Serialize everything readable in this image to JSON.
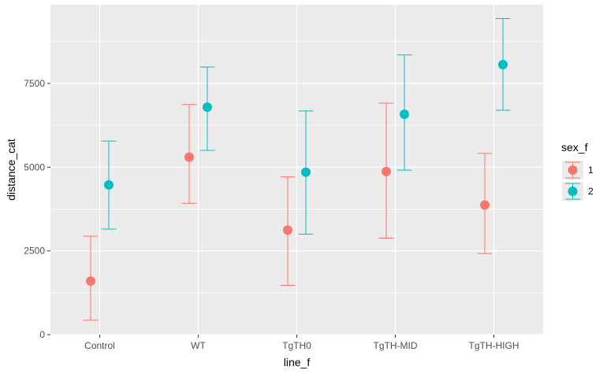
{
  "chart_data": {
    "type": "scatter",
    "xlabel": "line_f",
    "ylabel": "distance_cat",
    "categories": [
      "Control",
      "WT",
      "TgTH0",
      "TgTH-MID",
      "TgTH-HIGH"
    ],
    "ylim": [
      0,
      9850
    ],
    "yticks": [
      0,
      2500,
      5000,
      7500
    ],
    "ytick_labels": [
      "0",
      "2500",
      "5000",
      "7500"
    ],
    "grid": true,
    "legend": {
      "title": "sex_f",
      "placement": "right"
    },
    "series": [
      {
        "name": "1",
        "color": "#F8766D",
        "values": [
          1600,
          5300,
          3120,
          4870,
          3870
        ],
        "lower": [
          430,
          3920,
          1470,
          2880,
          2420
        ],
        "upper": [
          2940,
          6870,
          4710,
          6910,
          5410
        ]
      },
      {
        "name": "2",
        "color": "#00BFC4",
        "values": [
          4470,
          6790,
          4850,
          6580,
          8060
        ],
        "lower": [
          3150,
          5500,
          3000,
          4910,
          6700
        ],
        "upper": [
          5780,
          7990,
          6680,
          8350,
          9440
        ]
      }
    ]
  }
}
